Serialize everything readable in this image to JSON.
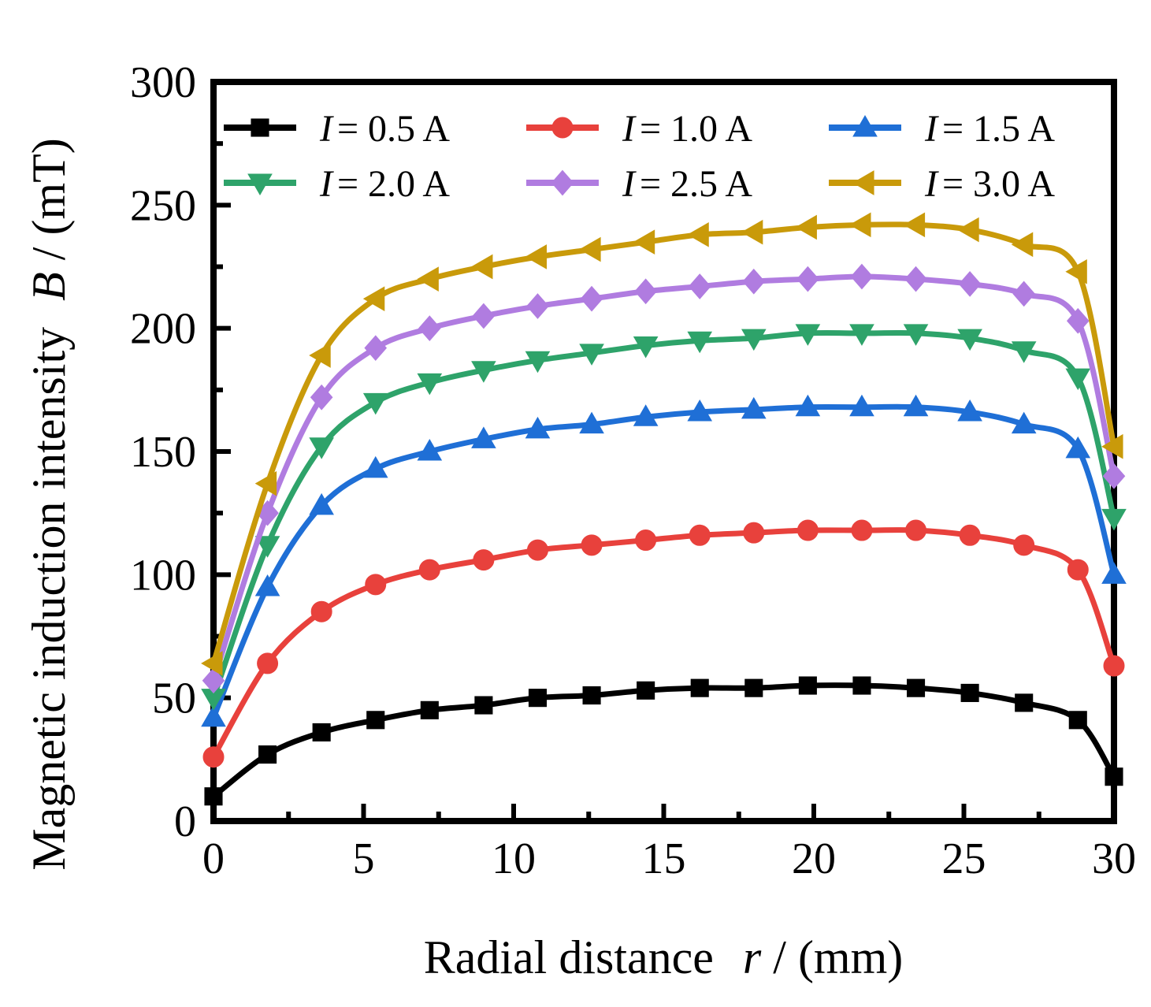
{
  "chart_data": {
    "type": "line",
    "xlabel_prefix": "Radial distance",
    "xlabel_var": "r",
    "xlabel_unit": "/ (mm)",
    "ylabel_prefix": "Magnetic induction intensity",
    "ylabel_var": "B",
    "ylabel_unit": "/ (mT)",
    "xlim": [
      0,
      30
    ],
    "ylim": [
      0,
      300
    ],
    "xticks": [
      "0",
      "5",
      "10",
      "15",
      "20",
      "25",
      "30"
    ],
    "yticks": [
      "0",
      "50",
      "100",
      "150",
      "200",
      "250",
      "300"
    ],
    "legend_position": "top",
    "marker_x": [
      0,
      1.8,
      3.6,
      5.4,
      7.2,
      9.0,
      10.8,
      12.6,
      14.4,
      16.2,
      18.0,
      19.8,
      21.6,
      23.4,
      25.2,
      27.0,
      28.8,
      30
    ],
    "series": [
      {
        "name": "I = 0.5 A",
        "var": "I",
        "text": "= 0.5 A",
        "color": "#000000",
        "marker": "square",
        "values": [
          10,
          27,
          36,
          41,
          45,
          47,
          50,
          51,
          53,
          54,
          54,
          55,
          55,
          54,
          52,
          48,
          41,
          18
        ]
      },
      {
        "name": "I = 1.0 A",
        "var": "I",
        "text": "= 1.0 A",
        "color": "#e8413c",
        "marker": "circle",
        "values": [
          26,
          64,
          85,
          96,
          102,
          106,
          110,
          112,
          114,
          116,
          117,
          118,
          118,
          118,
          116,
          112,
          102,
          63
        ]
      },
      {
        "name": "I = 1.5 A",
        "var": "I",
        "text": "= 1.5 A",
        "color": "#1f6fd6",
        "marker": "triangle-up",
        "values": [
          42,
          95,
          128,
          143,
          150,
          155,
          159,
          161,
          164,
          166,
          167,
          168,
          168,
          168,
          166,
          161,
          151,
          100
        ]
      },
      {
        "name": "I = 2.0 A",
        "var": "I",
        "text": "= 2.0 A",
        "color": "#2ea36a",
        "marker": "triangle-down",
        "values": [
          50,
          112,
          152,
          170,
          178,
          183,
          187,
          190,
          193,
          195,
          196,
          198,
          198,
          198,
          196,
          191,
          180,
          123
        ]
      },
      {
        "name": "I = 2.5 A",
        "var": "I",
        "text": "= 2.5 A",
        "color": "#b07ce0",
        "marker": "diamond",
        "values": [
          57,
          125,
          172,
          192,
          200,
          205,
          209,
          212,
          215,
          217,
          219,
          220,
          221,
          220,
          218,
          214,
          203,
          140
        ]
      },
      {
        "name": "I = 3.0 A",
        "var": "I",
        "text": "= 3.0 A",
        "color": "#c99a0a",
        "marker": "triangle-left",
        "values": [
          64,
          137,
          189,
          212,
          220,
          225,
          229,
          232,
          235,
          238,
          239,
          241,
          242,
          242,
          240,
          234,
          223,
          152
        ]
      }
    ]
  }
}
